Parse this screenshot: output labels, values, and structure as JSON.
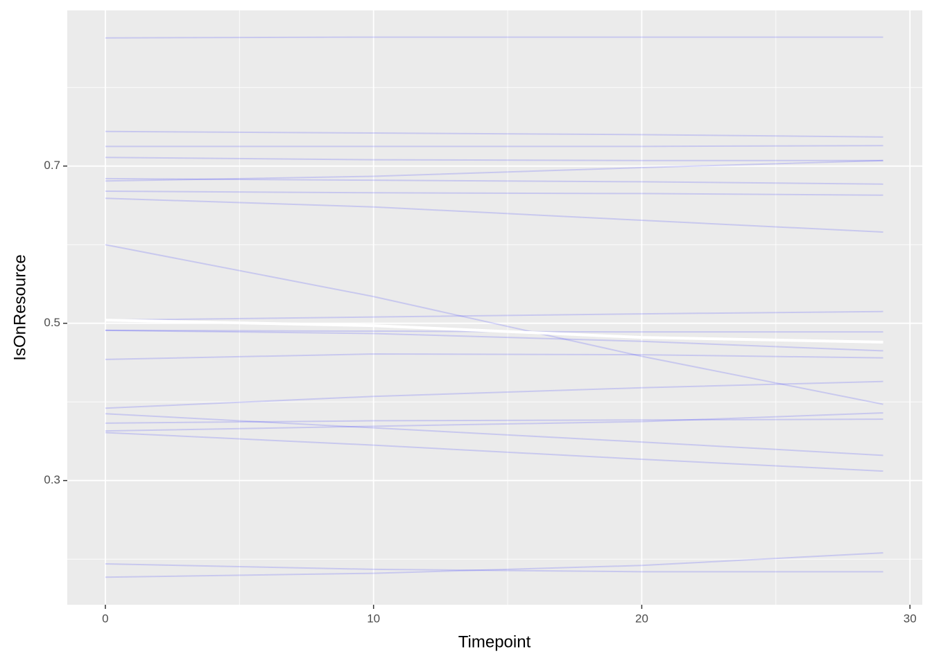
{
  "chart_data": {
    "type": "line",
    "x_label": "Timepoint",
    "y_label": "IsOnResource",
    "x": [
      0,
      10,
      20,
      29
    ],
    "xlim": [
      -1.42,
      30.46
    ],
    "ylim": [
      0.142,
      0.898
    ],
    "xticks": [
      0,
      10,
      20,
      30
    ],
    "yticks": [
      0.3,
      0.5,
      0.7
    ],
    "xminor": [
      5,
      15,
      25
    ],
    "yminor": [
      0.2,
      0.4,
      0.6,
      0.8
    ],
    "grid": true,
    "background": "#ebebeb",
    "line_alpha": 0.15,
    "series": [
      {
        "color": "#0000ff",
        "values": [
          0.863,
          0.864,
          0.864,
          0.864
        ]
      },
      {
        "color": "#0000ff",
        "values": [
          0.744,
          0.742,
          0.74,
          0.737
        ]
      },
      {
        "color": "#0000ff",
        "values": [
          0.725,
          0.725,
          0.725,
          0.726
        ]
      },
      {
        "color": "#0000ff",
        "values": [
          0.711,
          0.708,
          0.707,
          0.707
        ]
      },
      {
        "color": "#0000ff",
        "values": [
          0.681,
          0.687,
          0.698,
          0.707
        ]
      },
      {
        "color": "#0000ff",
        "values": [
          0.684,
          0.682,
          0.68,
          0.677
        ]
      },
      {
        "color": "#0000ff",
        "values": [
          0.668,
          0.666,
          0.665,
          0.663
        ]
      },
      {
        "color": "#0000ff",
        "values": [
          0.659,
          0.648,
          0.631,
          0.616
        ]
      },
      {
        "color": "#0000ff",
        "values": [
          0.6,
          0.534,
          0.458,
          0.397
        ]
      },
      {
        "color": "#0000ff",
        "values": [
          0.504,
          0.508,
          0.512,
          0.515
        ]
      },
      {
        "color": "#0000ff",
        "values": [
          0.491,
          0.49,
          0.489,
          0.489
        ]
      },
      {
        "color": "#0000ff",
        "values": [
          0.491,
          0.487,
          0.477,
          0.465
        ]
      },
      {
        "color": "#0000ff",
        "values": [
          0.454,
          0.461,
          0.46,
          0.456
        ]
      },
      {
        "color": "#0000ff",
        "values": [
          0.392,
          0.407,
          0.418,
          0.426
        ]
      },
      {
        "color": "#0000ff",
        "values": [
          0.385,
          0.367,
          0.349,
          0.332
        ]
      },
      {
        "color": "#0000ff",
        "values": [
          0.373,
          0.376,
          0.377,
          0.378
        ]
      },
      {
        "color": "#0000ff",
        "values": [
          0.363,
          0.369,
          0.375,
          0.386
        ]
      },
      {
        "color": "#0000ff",
        "values": [
          0.361,
          0.345,
          0.327,
          0.312
        ]
      },
      {
        "color": "#0000ff",
        "values": [
          0.194,
          0.187,
          0.184,
          0.184
        ]
      },
      {
        "color": "#0000ff",
        "values": [
          0.177,
          0.182,
          0.192,
          0.208
        ]
      },
      {
        "color": "#ffffff",
        "values": [
          0.504,
          0.497,
          0.482,
          0.476
        ],
        "emphasis": true
      }
    ]
  }
}
